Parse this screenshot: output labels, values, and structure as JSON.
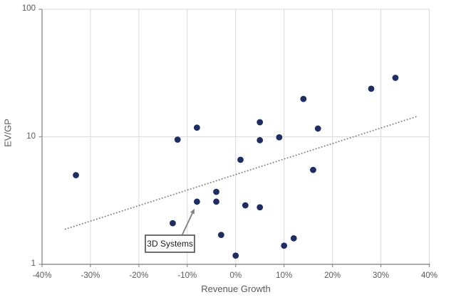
{
  "chart_data": {
    "type": "scatter",
    "title": "",
    "xlabel": "Revenue Growth",
    "ylabel": "EV/GP",
    "x_axis": {
      "min": -40,
      "max": 40,
      "format": "percent",
      "ticks": [
        -40,
        -30,
        -20,
        -10,
        0,
        10,
        20,
        30,
        40
      ],
      "tick_labels": [
        "-40%",
        "-30%",
        "-20%",
        "-10%",
        "0%",
        "10%",
        "20%",
        "30%",
        "40%"
      ]
    },
    "y_axis": {
      "scale": "log",
      "min": 1,
      "max": 100,
      "ticks": [
        1,
        10,
        100
      ],
      "tick_labels": [
        "1",
        "10",
        "100"
      ]
    },
    "grid": true,
    "legend": "none",
    "points": [
      {
        "x": -33,
        "y": 5.0
      },
      {
        "x": -13,
        "y": 2.1
      },
      {
        "x": -12,
        "y": 9.5
      },
      {
        "x": -8,
        "y": 11.8
      },
      {
        "x": -8,
        "y": 3.1,
        "label": "3D Systems"
      },
      {
        "x": -4,
        "y": 3.7
      },
      {
        "x": -4,
        "y": 3.1
      },
      {
        "x": -3,
        "y": 1.7
      },
      {
        "x": 0,
        "y": 1.17
      },
      {
        "x": 1,
        "y": 6.6
      },
      {
        "x": 2,
        "y": 2.9
      },
      {
        "x": 5,
        "y": 13.0
      },
      {
        "x": 5,
        "y": 9.4
      },
      {
        "x": 5,
        "y": 2.8
      },
      {
        "x": 9,
        "y": 9.9
      },
      {
        "x": 10,
        "y": 1.4
      },
      {
        "x": 12,
        "y": 1.6
      },
      {
        "x": 14,
        "y": 19.8
      },
      {
        "x": 16,
        "y": 5.5
      },
      {
        "x": 17,
        "y": 11.6
      },
      {
        "x": 28,
        "y": 23.8
      },
      {
        "x": 33,
        "y": 29.0
      }
    ],
    "trendline": {
      "style": "dotted",
      "x1": -35.3,
      "y1": 1.88,
      "x2": 37.6,
      "y2": 14.5
    },
    "annotation": {
      "label": "3D Systems",
      "target": {
        "x": -8,
        "y": 3.1
      }
    },
    "colors": {
      "point": "#1e2d62",
      "trendline": "#7f7f7f",
      "gridline": "#d9d9d9",
      "axis": "#8e8e8e",
      "tick_text": "#595959",
      "axis_title_text": "#595959",
      "annotation_border": "#6e6e6e",
      "annotation_text": "#1a1a1a",
      "arrow": "#7f7f7f",
      "background": "#ffffff"
    }
  }
}
